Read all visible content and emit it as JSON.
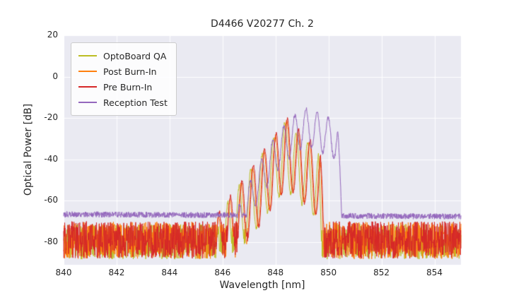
{
  "colors": {
    "figure_bg": "#ffffff",
    "plot_bg": "#eaeaf2",
    "grid": "#ffffff",
    "text": "#262626"
  },
  "chart_data": {
    "type": "line",
    "title": "D4466 V20277 Ch. 2",
    "xlabel": "Wavelength [nm]",
    "ylabel": "Optical Power [dB]",
    "xlim": [
      840,
      855
    ],
    "ylim": [
      -91,
      20
    ],
    "xticks": [
      840,
      842,
      844,
      846,
      848,
      850,
      852,
      854
    ],
    "yticks": [
      20,
      0,
      -20,
      -40,
      -60,
      -80
    ],
    "grid": true,
    "legend_position": "upper left",
    "description": "Optical spectra: three overlapping noisy spectra (OptoBoard QA, Post Burn-In, Pre Burn-In) with multimode peaks between 846 and 849.7 nm reaching about -20 dB near 848.5 nm over a noise floor near -80 dB; Reception Test spectrum shifted right, peaking about -15.5 dB near 849.2 nm, extending to 850.3 nm, with a quieter noise floor near -67 dB.",
    "series": [
      {
        "name": "OptoBoard QA",
        "color": "#bcbd22",
        "seed": 11,
        "floor": -79.8,
        "floor_noise": 8.5,
        "floor_slope": 0,
        "onset": 845.85,
        "cutoff": 849.62,
        "peak": -22.0,
        "peak_x": 848.35,
        "sl": 18,
        "ql": 0,
        "sr": 12,
        "qr": 0,
        "mode_spacing": 0.43,
        "mode_phase": 848.35,
        "mode_depth": 32
      },
      {
        "name": "Post Burn-In",
        "color": "#ff7f0e",
        "seed": 22,
        "floor": -79.2,
        "floor_noise": 9,
        "floor_slope": 0,
        "onset": 845.8,
        "cutoff": 849.68,
        "peak": -21.0,
        "peak_x": 848.42,
        "sl": 18,
        "ql": 0,
        "sr": 12.5,
        "qr": 0,
        "mode_spacing": 0.43,
        "mode_phase": 848.42,
        "mode_depth": 32
      },
      {
        "name": "Pre Burn-In",
        "color": "#d62728",
        "seed": 33,
        "floor": -79.0,
        "floor_noise": 9,
        "floor_slope": 0,
        "onset": 845.75,
        "cutoff": 849.7,
        "peak": -20.3,
        "peak_x": 848.45,
        "sl": 17.5,
        "ql": 0,
        "sr": 12.5,
        "qr": 0,
        "mode_spacing": 0.43,
        "mode_phase": 848.45,
        "mode_depth": 33
      },
      {
        "name": "Reception Test",
        "color": "#9467bd",
        "seed": 44,
        "floor": -66.6,
        "floor_noise": 1.4,
        "floor_slope": -0.07,
        "onset": 846.2,
        "cutoff": 850.35,
        "peak": -15.5,
        "peak_x": 849.15,
        "sl": 6,
        "ql": 5,
        "sr": 4,
        "qr": 1.5,
        "mode_spacing": 0.42,
        "mode_phase": 849.15,
        "mode_depth": 18
      }
    ]
  }
}
